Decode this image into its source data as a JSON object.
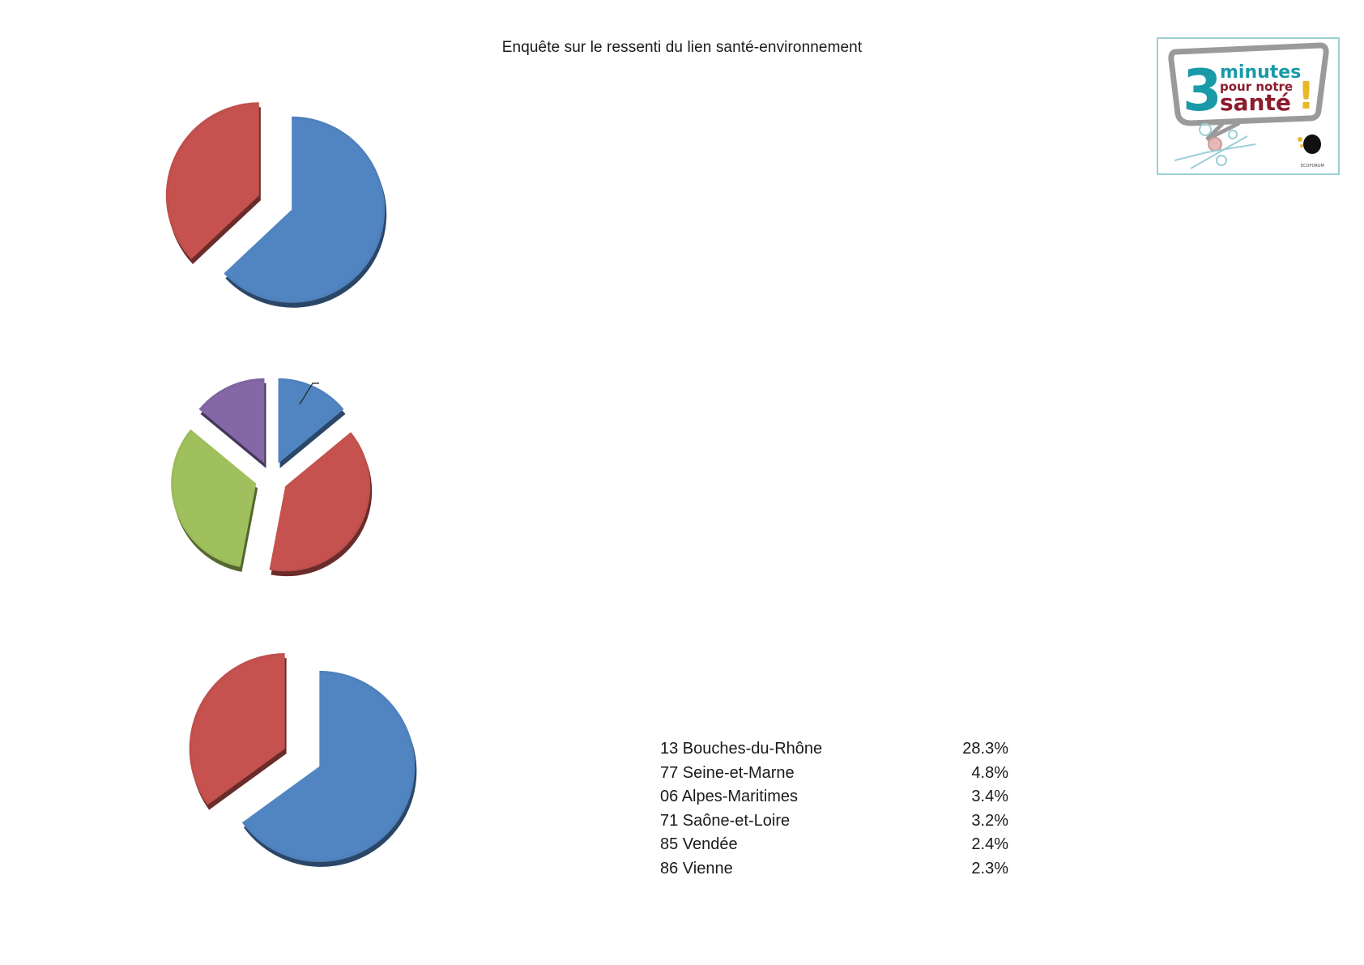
{
  "title": "Enquête sur le ressenti du  lien santé-environnement",
  "logo": {
    "digit": "3",
    "line1": "minutes",
    "line2": "pour notre",
    "line3": "santé",
    "mark": "!",
    "org": "ECOFORUM",
    "colors": {
      "teal": "#1a9aa8",
      "dark_red": "#8c1c2c",
      "gold": "#e8b82a",
      "frame": "#9ccfd6"
    }
  },
  "chart_data": [
    {
      "type": "pie",
      "exploded": true,
      "style": "3d",
      "slices": [
        {
          "color": "#4f81bd",
          "value": 63
        },
        {
          "color": "#c0504d",
          "value": 37
        }
      ]
    },
    {
      "type": "pie",
      "exploded": true,
      "style": "3d",
      "slices": [
        {
          "color": "#4f81bd",
          "value": 14
        },
        {
          "color": "#c0504d",
          "value": 39
        },
        {
          "color": "#9bbb59",
          "value": 33
        },
        {
          "color": "#8064a2",
          "value": 14
        }
      ]
    },
    {
      "type": "pie",
      "exploded": true,
      "style": "3d",
      "slices": [
        {
          "color": "#4f81bd",
          "value": 65
        },
        {
          "color": "#c0504d",
          "value": 35
        }
      ]
    },
    {
      "type": "table",
      "rows": [
        {
          "label": "13 Bouches-du-Rhône",
          "value": "28.3%"
        },
        {
          "label": "77 Seine-et-Marne",
          "value": "4.8%"
        },
        {
          "label": "06 Alpes-Maritimes",
          "value": "3.4%"
        },
        {
          "label": "71 Saône-et-Loire",
          "value": "3.2%"
        },
        {
          "label": "85 Vendée",
          "value": "2.4%"
        },
        {
          "label": "86 Vienne",
          "value": "2.3%"
        }
      ]
    }
  ]
}
